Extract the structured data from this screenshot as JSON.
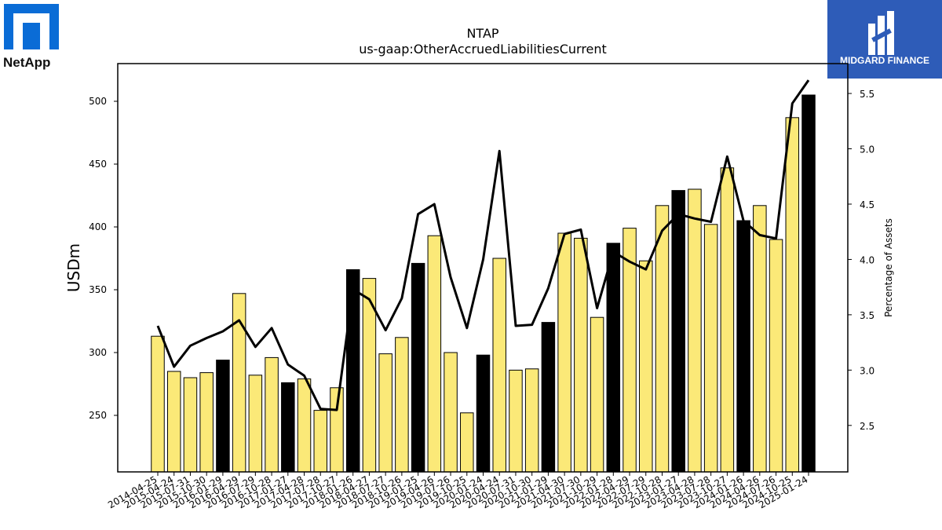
{
  "logos": {
    "left_text": "NetApp",
    "right_text": "MIDGARD FINANCE"
  },
  "colors": {
    "bar_fill": "#fbe978",
    "bar_highlight": "#000000",
    "line": "#000000"
  },
  "chart_data": {
    "type": "bar",
    "title": "NTAP",
    "subtitle": "us-gaap:OtherAccruedLiabilitiesCurrent",
    "ylabel": "USDm",
    "y2label": "Percentage of Assets",
    "ylim": [
      205,
      530
    ],
    "y2lim": [
      2.08,
      5.77
    ],
    "yticks": [
      250,
      300,
      350,
      400,
      450,
      500
    ],
    "y2ticks": [
      "2.5",
      "3.0",
      "3.5",
      "4.0",
      "4.5",
      "5.0",
      "5.5"
    ],
    "categories": [
      "2014-04-25",
      "2015-04-24",
      "2015-07-31",
      "2015-10-30",
      "2016-01-29",
      "2016-04-29",
      "2016-07-29",
      "2016-10-28",
      "2017-01-27",
      "2017-04-28",
      "2017-07-28",
      "2017-10-27",
      "2018-01-26",
      "2018-04-27",
      "2018-07-27",
      "2018-10-26",
      "2019-01-25",
      "2019-04-26",
      "2019-07-26",
      "2019-10-25",
      "2020-01-24",
      "2020-04-24",
      "2020-07-31",
      "2020-10-30",
      "2021-01-29",
      "2021-04-30",
      "2021-07-30",
      "2021-10-29",
      "2022-01-28",
      "2022-04-29",
      "2022-07-29",
      "2022-10-28",
      "2023-01-27",
      "2023-04-28",
      "2023-07-28",
      "2023-10-27",
      "2024-01-26",
      "2024-04-26",
      "2024-07-26",
      "2024-10-25",
      "2025-01-24"
    ],
    "series": [
      {
        "type": "bar",
        "values": [
          313,
          285,
          280,
          284,
          294,
          347,
          282,
          296,
          276,
          279,
          254,
          272,
          366,
          359,
          299,
          312,
          371,
          393,
          300,
          252,
          298,
          375,
          286,
          287,
          324,
          395,
          391,
          328,
          387,
          399,
          373,
          417,
          429,
          430,
          402,
          447,
          405,
          417,
          390,
          487,
          505
        ],
        "highlight": [
          false,
          false,
          false,
          false,
          true,
          false,
          false,
          false,
          true,
          false,
          false,
          false,
          true,
          false,
          false,
          false,
          true,
          false,
          false,
          false,
          true,
          false,
          false,
          false,
          true,
          false,
          false,
          false,
          true,
          false,
          false,
          false,
          true,
          false,
          false,
          false,
          true,
          false,
          false,
          false,
          true
        ]
      },
      {
        "type": "line",
        "axis": "right",
        "values": [
          3.4,
          3.03,
          3.22,
          3.29,
          3.35,
          3.45,
          3.21,
          3.38,
          3.05,
          2.95,
          2.65,
          2.64,
          3.73,
          3.64,
          3.36,
          3.65,
          4.41,
          4.5,
          3.84,
          3.38,
          4.0,
          4.98,
          3.4,
          3.41,
          3.74,
          4.23,
          4.27,
          3.56,
          4.07,
          3.98,
          3.91,
          4.26,
          4.41,
          4.37,
          4.34,
          4.93,
          4.35,
          4.22,
          4.19,
          5.41,
          5.62
        ]
      }
    ]
  }
}
